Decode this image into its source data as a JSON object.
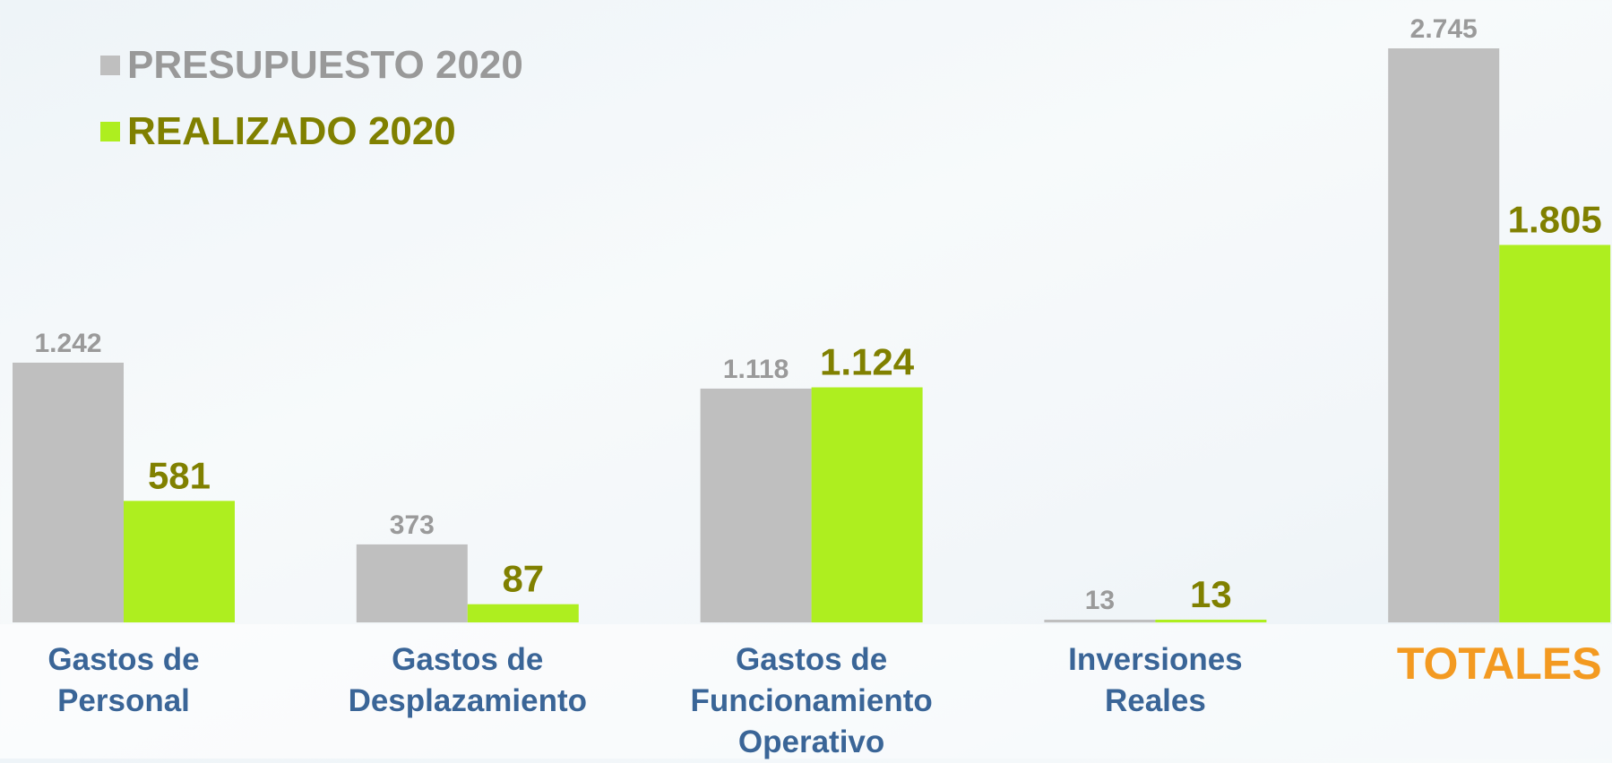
{
  "chart_data": {
    "type": "bar",
    "categories": [
      "Gastos de\nPersonal",
      "Gastos de\nDesplazamiento",
      "Gastos de\nFuncionamiento\nOperativo",
      "Inversiones\nReales",
      "TOTALES"
    ],
    "series": [
      {
        "name": "PRESUPUESTO 2020",
        "color": "#bfbfbf",
        "values": [
          1242,
          373,
          1118,
          13,
          2745
        ],
        "value_labels": [
          "1.242",
          "373",
          "1.118",
          "13",
          "2.745"
        ]
      },
      {
        "name": "REALIZADO 2020",
        "color": "#aeee1f",
        "values": [
          581,
          87,
          1124,
          13,
          1805
        ],
        "value_labels": [
          "581",
          "87",
          "1.124",
          "13",
          "1.805"
        ]
      }
    ],
    "legend": "top-left"
  }
}
